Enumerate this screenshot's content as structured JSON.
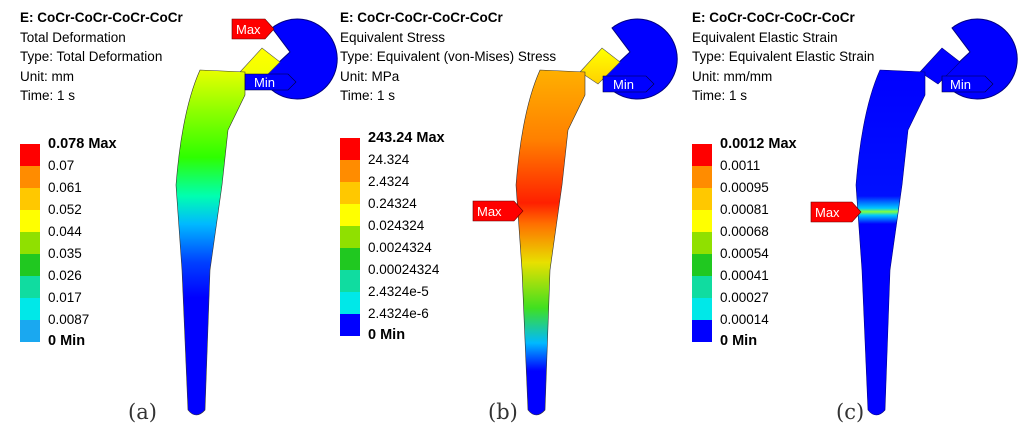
{
  "colors": {
    "contour": [
      "#0000ff",
      "#005cff",
      "#00b9ff",
      "#00ffe8",
      "#00ff8b",
      "#00ff2e",
      "#2eff00",
      "#8bff00",
      "#e8ff00",
      "#ffb900",
      "#ff5c00",
      "#ff0000"
    ],
    "legend": [
      "#ff0000",
      "#ff8c00",
      "#ffc800",
      "#ffff00",
      "#90e000",
      "#20c820",
      "#10dca0",
      "#00e8e8",
      "#1aa8f0",
      "#0000ff"
    ],
    "max_tag": "#ff0000",
    "min_tag": "#0000ff"
  },
  "panels": [
    {
      "title": "E: CoCr-CoCr-CoCr-CoCr",
      "lines": [
        "Total Deformation",
        "Type: Total Deformation",
        "Unit: mm",
        "Time: 1 s"
      ],
      "legend": [
        "0.078 Max",
        "0.07",
        "0.061",
        "0.052",
        "0.044",
        "0.035",
        "0.026",
        "0.017",
        "0.0087",
        "0 Min"
      ],
      "tags": {
        "max": "Max",
        "min": "Min"
      },
      "caption": "(a)"
    },
    {
      "title": "E: CoCr-CoCr-CoCr-CoCr",
      "lines": [
        "Equivalent Stress",
        "Type: Equivalent (von-Mises) Stress",
        "Unit: MPa",
        "Time: 1 s"
      ],
      "legend": [
        "243.24 Max",
        "24.324",
        "2.4324",
        "0.24324",
        "0.024324",
        "0.0024324",
        "0.00024324",
        "2.4324e-5",
        "2.4324e-6",
        "0 Min"
      ],
      "tags": {
        "max": "Max",
        "min": "Min"
      },
      "caption": "(b)"
    },
    {
      "title": "E: CoCr-CoCr-CoCr-CoCr",
      "lines": [
        "Equivalent Elastic Strain",
        "Type: Equivalent Elastic Strain",
        "Unit: mm/mm",
        "Time: 1 s"
      ],
      "legend": [
        "0.0012 Max",
        "0.0011",
        "0.00095",
        "0.00081",
        "0.00068",
        "0.00054",
        "0.00041",
        "0.00027",
        "0.00014",
        "0 Min"
      ],
      "tags": {
        "max": "Max",
        "min": "Min"
      },
      "caption": "(c)"
    }
  ]
}
